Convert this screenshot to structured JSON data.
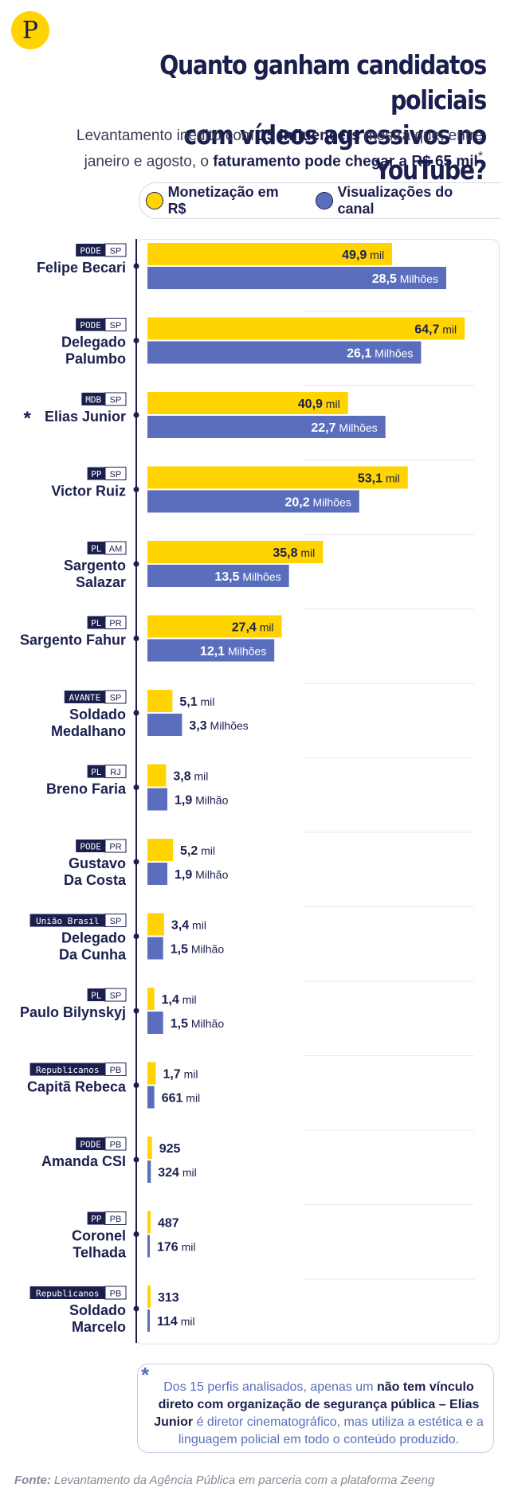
{
  "logo": {
    "text": "P"
  },
  "header": {
    "title_line1": "Quanto ganham candidatos policiais",
    "title_line2": "com vídeos agressivos no YouTube?",
    "subtitle_part1": "Levantamento inédito com ",
    "subtitle_bold1": "15 influencers",
    "subtitle_part2": " mostra que, entre janeiro e agosto, o ",
    "subtitle_bold2": "faturamento pode chegar a R$ 65 mil",
    "subtitle_star": "*"
  },
  "legend": {
    "monetization": "Monetização em R$",
    "views": "Visualizações do canal"
  },
  "colors": {
    "yellow": "#ffd400",
    "blue": "#5a6ebd",
    "navy": "#1b1f4e"
  },
  "chart_data": {
    "type": "bar",
    "orientation": "horizontal",
    "categories": [
      {
        "name": "Felipe Becari",
        "party": "PODE",
        "state": "SP",
        "star": ""
      },
      {
        "name": "Delegado Palumbo",
        "party": "PODE",
        "state": "SP",
        "star": ""
      },
      {
        "name": "Elias Junior",
        "party": "MDB",
        "state": "SP",
        "star": "*"
      },
      {
        "name": "Victor Ruiz",
        "party": "PP",
        "state": "SP",
        "star": ""
      },
      {
        "name": "Sargento Salazar",
        "party": "PL",
        "state": "AM",
        "star": ""
      },
      {
        "name": "Sargento Fahur",
        "party": "PL",
        "state": "PR",
        "star": ""
      },
      {
        "name": "Soldado Medalhano",
        "party": "AVANTE",
        "state": "SP",
        "star": ""
      },
      {
        "name": "Breno Faria",
        "party": "PL",
        "state": "RJ",
        "star": ""
      },
      {
        "name": "Gustavo Da Costa",
        "party": "PODE",
        "state": "PR",
        "star": ""
      },
      {
        "name": "Delegado Da Cunha",
        "party": "União Brasil",
        "state": "SP",
        "star": ""
      },
      {
        "name": "Paulo Bilynskyj",
        "party": "PL",
        "state": "SP",
        "star": ""
      },
      {
        "name": "Capitã Rebeca",
        "party": "Republicanos",
        "state": "PB",
        "star": ""
      },
      {
        "name": "Amanda CSI",
        "party": "PODE",
        "state": "PB",
        "star": ""
      },
      {
        "name": "Coronel Telhada",
        "party": "PP",
        "state": "PB",
        "star": ""
      },
      {
        "name": "Soldado Marcelo",
        "party": "Republicanos",
        "state": "PB",
        "star": ""
      }
    ],
    "series": [
      {
        "name": "Monetização em R$",
        "values": [
          49.9,
          64.7,
          40.9,
          53.1,
          35.8,
          27.4,
          5.1,
          3.8,
          5.2,
          3.4,
          1.4,
          1.7,
          0.925,
          0.487,
          0.313
        ],
        "labels_value": [
          "49,9",
          "64,7",
          "40,9",
          "53,1",
          "35,8",
          "27,4",
          "5,1",
          "3,8",
          "5,2",
          "3,4",
          "1,4",
          "1,7",
          "925",
          "487",
          "313"
        ],
        "labels_unit": [
          "mil",
          "mil",
          "mil",
          "mil",
          "mil",
          "mil",
          "mil",
          "mil",
          "mil",
          "mil",
          "mil",
          "mil",
          "",
          "",
          ""
        ]
      },
      {
        "name": "Visualizações do canal",
        "values": [
          28.5,
          26.1,
          22.7,
          20.2,
          13.5,
          12.1,
          3.3,
          1.9,
          1.9,
          1.5,
          1.5,
          0.661,
          0.324,
          0.176,
          0.114
        ],
        "labels_value": [
          "28,5",
          "26,1",
          "22,7",
          "20,2",
          "13,5",
          "12,1",
          "3,3",
          "1,9",
          "1,9",
          "1,5",
          "1,5",
          "661",
          "324",
          "176",
          "114"
        ],
        "labels_unit": [
          "Milhões",
          "Milhões",
          "Milhões",
          "Milhões",
          "Milhões",
          "Milhões",
          "Milhões",
          "Milhão",
          "Milhão",
          "Milhão",
          "Milhão",
          "mil",
          "mil",
          "mil",
          "mil"
        ]
      }
    ]
  },
  "note": {
    "star": "*",
    "part1": "Dos 15 perfis analisados, apenas um ",
    "bold1": "não tem vínculo direto com organização de segurança pública – Elias Junior",
    "part2": " é diretor cinematográfico, mas utiliza a estética e a linguagem policial em todo o conteúdo produzido."
  },
  "source": {
    "label": "Fonte:",
    "text": " Levantamento da Agência Pública em parceria com a plataforma Zeeng"
  }
}
